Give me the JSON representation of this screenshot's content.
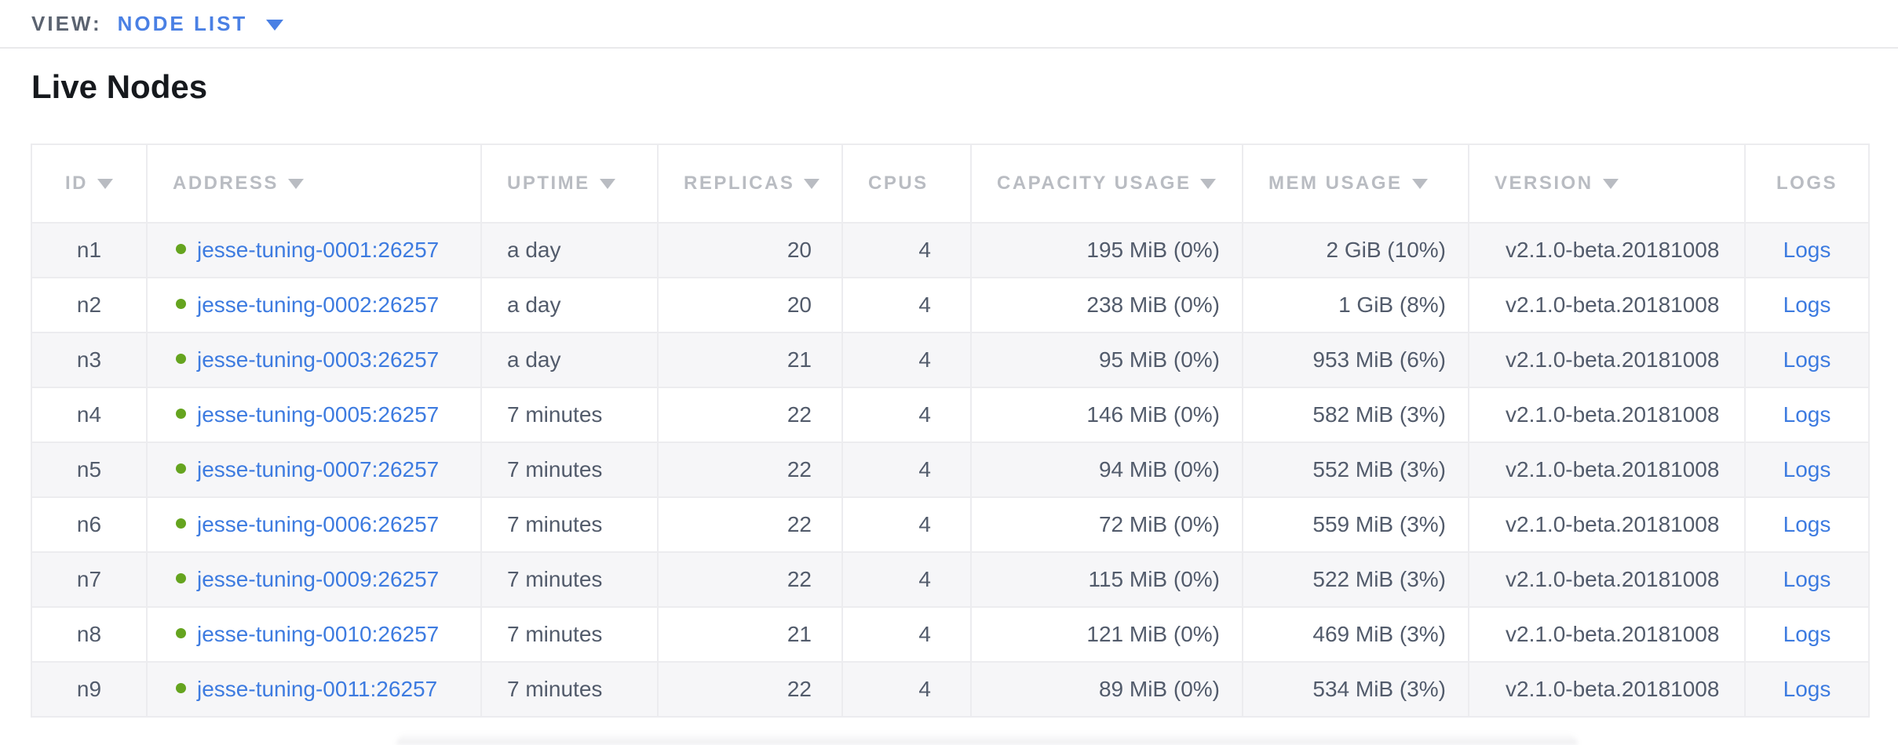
{
  "view_bar": {
    "label": "VIEW:",
    "selected_view": "NODE LIST",
    "dropdown_icon": "caret-down-icon"
  },
  "page_title": "Live Nodes",
  "colors": {
    "link_blue": "#3d7be0",
    "view_accent_blue": "#4a80e4",
    "status_green": "#65a41f",
    "header_text_gray": "#b9bcc2",
    "cell_text": "#525b6b",
    "row_stripe": "#f6f6f8",
    "table_border": "#ececef"
  },
  "table": {
    "columns": [
      {
        "key": "id",
        "label": "ID",
        "sortable": true,
        "align": "center"
      },
      {
        "key": "address",
        "label": "ADDRESS",
        "sortable": true,
        "align": "left"
      },
      {
        "key": "uptime",
        "label": "UPTIME",
        "sortable": true,
        "align": "left"
      },
      {
        "key": "replicas",
        "label": "REPLICAS",
        "sortable": true,
        "align": "right"
      },
      {
        "key": "cpus",
        "label": "CPUS",
        "sortable": false,
        "align": "right"
      },
      {
        "key": "capacity_usage",
        "label": "CAPACITY USAGE",
        "sortable": true,
        "align": "right"
      },
      {
        "key": "mem_usage",
        "label": "MEM USAGE",
        "sortable": true,
        "align": "right"
      },
      {
        "key": "version",
        "label": "VERSION",
        "sortable": true,
        "align": "left"
      },
      {
        "key": "logs",
        "label": "LOGS",
        "sortable": false,
        "align": "center"
      }
    ],
    "rows": [
      {
        "id": "n1",
        "status": "live",
        "address": "jesse-tuning-0001:26257",
        "uptime": "a day",
        "replicas": "20",
        "cpus": "4",
        "capacity_usage": "195 MiB (0%)",
        "mem_usage": "2 GiB (10%)",
        "version": "v2.1.0-beta.20181008",
        "logs": "Logs"
      },
      {
        "id": "n2",
        "status": "live",
        "address": "jesse-tuning-0002:26257",
        "uptime": "a day",
        "replicas": "20",
        "cpus": "4",
        "capacity_usage": "238 MiB (0%)",
        "mem_usage": "1 GiB (8%)",
        "version": "v2.1.0-beta.20181008",
        "logs": "Logs"
      },
      {
        "id": "n3",
        "status": "live",
        "address": "jesse-tuning-0003:26257",
        "uptime": "a day",
        "replicas": "21",
        "cpus": "4",
        "capacity_usage": "95 MiB (0%)",
        "mem_usage": "953 MiB (6%)",
        "version": "v2.1.0-beta.20181008",
        "logs": "Logs"
      },
      {
        "id": "n4",
        "status": "live",
        "address": "jesse-tuning-0005:26257",
        "uptime": "7 minutes",
        "replicas": "22",
        "cpus": "4",
        "capacity_usage": "146 MiB (0%)",
        "mem_usage": "582 MiB (3%)",
        "version": "v2.1.0-beta.20181008",
        "logs": "Logs"
      },
      {
        "id": "n5",
        "status": "live",
        "address": "jesse-tuning-0007:26257",
        "uptime": "7 minutes",
        "replicas": "22",
        "cpus": "4",
        "capacity_usage": "94 MiB (0%)",
        "mem_usage": "552 MiB (3%)",
        "version": "v2.1.0-beta.20181008",
        "logs": "Logs"
      },
      {
        "id": "n6",
        "status": "live",
        "address": "jesse-tuning-0006:26257",
        "uptime": "7 minutes",
        "replicas": "22",
        "cpus": "4",
        "capacity_usage": "72 MiB (0%)",
        "mem_usage": "559 MiB (3%)",
        "version": "v2.1.0-beta.20181008",
        "logs": "Logs"
      },
      {
        "id": "n7",
        "status": "live",
        "address": "jesse-tuning-0009:26257",
        "uptime": "7 minutes",
        "replicas": "22",
        "cpus": "4",
        "capacity_usage": "115 MiB (0%)",
        "mem_usage": "522 MiB (3%)",
        "version": "v2.1.0-beta.20181008",
        "logs": "Logs"
      },
      {
        "id": "n8",
        "status": "live",
        "address": "jesse-tuning-0010:26257",
        "uptime": "7 minutes",
        "replicas": "21",
        "cpus": "4",
        "capacity_usage": "121 MiB (0%)",
        "mem_usage": "469 MiB (3%)",
        "version": "v2.1.0-beta.20181008",
        "logs": "Logs"
      },
      {
        "id": "n9",
        "status": "live",
        "address": "jesse-tuning-0011:26257",
        "uptime": "7 minutes",
        "replicas": "22",
        "cpus": "4",
        "capacity_usage": "89 MiB (0%)",
        "mem_usage": "534 MiB (3%)",
        "version": "v2.1.0-beta.20181008",
        "logs": "Logs"
      }
    ]
  }
}
